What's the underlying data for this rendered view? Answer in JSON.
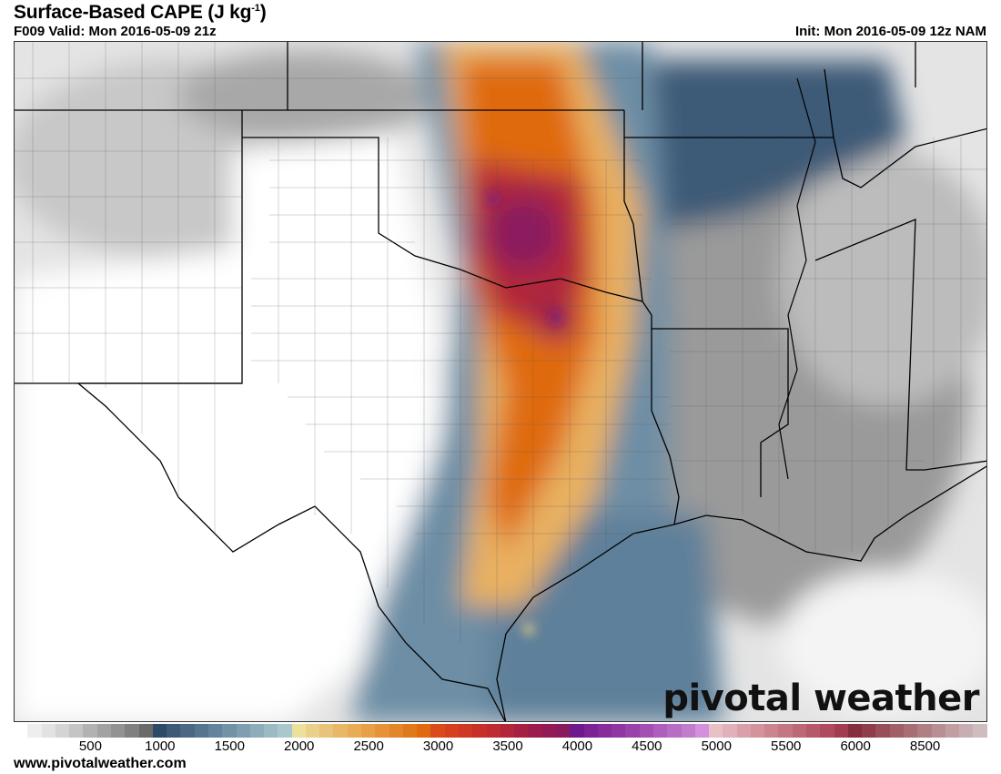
{
  "header": {
    "title": "Surface-Based CAPE (J kg",
    "title_superscript": "-1",
    "title_close": ")",
    "valid": "F009 Valid: Mon 2016-05-09 21z",
    "init": "Init: Mon 2016-05-09 12z NAM"
  },
  "logo": {
    "text": "pivotal weather"
  },
  "footer": {
    "url": "www.pivotalweather.com"
  },
  "colorbar": {
    "labels": [
      "500",
      "1000",
      "1500",
      "2000",
      "2500",
      "3000",
      "3500",
      "4000",
      "4500",
      "5000",
      "5500",
      "6000",
      "8500"
    ],
    "colors": [
      "#ffffff",
      "#eeeeee",
      "#e2e2e2",
      "#d4d4d4",
      "#c4c4c4",
      "#b2b2b2",
      "#a2a2a2",
      "#929292",
      "#808080",
      "#6a6a6a",
      "#2f4a66",
      "#3d5a77",
      "#4a6884",
      "#567690",
      "#63849c",
      "#7192a7",
      "#7f9fb1",
      "#8dadbb",
      "#9bbac4",
      "#a9c8ce",
      "#ede09a",
      "#ead08a",
      "#e8c47a",
      "#e8b868",
      "#e8ac58",
      "#e8a048",
      "#e59238",
      "#e3852a",
      "#e0781c",
      "#df6a10",
      "#db4a1a",
      "#d6401e",
      "#cf3824",
      "#c8302a",
      "#bf2b32",
      "#b2253a",
      "#a62044",
      "#9c1c4c",
      "#921a55",
      "#8a1a5e",
      "#6e1a8e",
      "#7c2396",
      "#882c9c",
      "#9035a3",
      "#9a42aa",
      "#a450b3",
      "#ae5ebc",
      "#b86dc4",
      "#c27ccc",
      "#d390dc",
      "#e8c0c6",
      "#e2b0b8",
      "#daa0aa",
      "#d3929c",
      "#cc858f",
      "#c47683",
      "#bd6877",
      "#b65a6a",
      "#ae4c5e",
      "#a43c50",
      "#862f3c",
      "#8f3d49",
      "#975057",
      "#a06066",
      "#a86e74",
      "#b07f84",
      "#b88f94",
      "#c09fa3",
      "#c8aeb2",
      "#cfbcbf"
    ]
  },
  "map": {
    "field": "Surface-Based CAPE",
    "palette": {
      "low": "#ffffff",
      "gray": "#8a8a8a",
      "blue": "#4a6884",
      "orange": "#e8a048",
      "red": "#cf3824",
      "purple": "#7c2396"
    }
  }
}
